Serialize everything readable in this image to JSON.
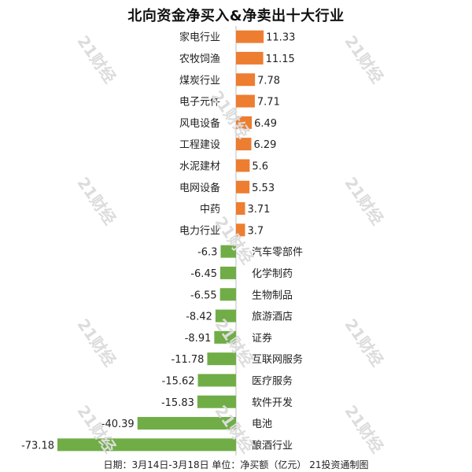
{
  "chart_data": {
    "type": "bar",
    "orientation": "horizontal",
    "title": "北向资金净买入&净卖出十大行业",
    "categories": [
      "家电行业",
      "农牧饲渔",
      "煤炭行业",
      "电子元件",
      "风电设备",
      "工程建设",
      "水泥建材",
      "电网设备",
      "中药",
      "电力行业",
      "汽车零部件",
      "化学制药",
      "生物制品",
      "旅游酒店",
      "证券",
      "互联网服务",
      "医疗服务",
      "软件开发",
      "电池",
      "酿酒行业"
    ],
    "values": [
      11.33,
      11.15,
      7.78,
      7.71,
      6.49,
      6.29,
      5.6,
      5.53,
      3.71,
      3.7,
      -6.3,
      -6.45,
      -6.55,
      -8.42,
      -8.91,
      -11.78,
      -15.62,
      -15.83,
      -40.39,
      -73.18
    ],
    "value_labels": [
      "11.33",
      "11.15",
      "7.78",
      "7.71",
      "6.49",
      "6.29",
      "5.6",
      "5.53",
      "3.71",
      "3.7",
      "-6.3",
      "-6.45",
      "-6.55",
      "-8.42",
      "-8.91",
      "-11.78",
      "-15.62",
      "-15.83",
      "-40.39",
      "-73.18"
    ],
    "xlim": [
      -80,
      40
    ],
    "grid": false,
    "legend": "none",
    "colors": {
      "positive": "#ED7D31",
      "negative": "#70AD47",
      "axis": "#bfbfbf"
    }
  },
  "footer": "日期：3月14日-3月18日 单位：净买额（亿元） 21投资通制图",
  "watermark": "21财经"
}
